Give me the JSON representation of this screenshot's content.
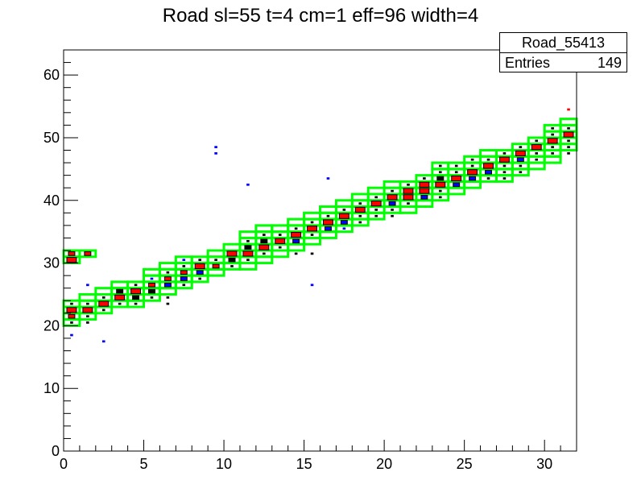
{
  "title": "Road sl=55 t=4 cm=1 eff=96 width=4",
  "stats": {
    "name": "Road_55413",
    "entries_label": "Entries",
    "entries_value": "149"
  },
  "colors": {
    "road": "#00ff00",
    "hit_red": "#ff0000",
    "hit_blue": "#0000ff",
    "hit_black": "#000000"
  },
  "chart_data": {
    "type": "heatmap",
    "xlim": [
      0,
      32
    ],
    "ylim": [
      0,
      64
    ],
    "x_ticks": [
      "0",
      "5",
      "10",
      "15",
      "20",
      "25",
      "30"
    ],
    "y_ticks": [
      "0",
      "10",
      "20",
      "30",
      "40",
      "50",
      "60"
    ],
    "road_boxes": [
      [
        0,
        20
      ],
      [
        0,
        21
      ],
      [
        0,
        22
      ],
      [
        0,
        23
      ],
      [
        0,
        30
      ],
      [
        0,
        31
      ],
      [
        1,
        21
      ],
      [
        1,
        22
      ],
      [
        1,
        23
      ],
      [
        1,
        24
      ],
      [
        1,
        31
      ],
      [
        2,
        22
      ],
      [
        2,
        23
      ],
      [
        2,
        24
      ],
      [
        2,
        25
      ],
      [
        3,
        23
      ],
      [
        3,
        24
      ],
      [
        3,
        25
      ],
      [
        3,
        26
      ],
      [
        4,
        23
      ],
      [
        4,
        24
      ],
      [
        4,
        25
      ],
      [
        4,
        26
      ],
      [
        5,
        24
      ],
      [
        5,
        25
      ],
      [
        5,
        26
      ],
      [
        5,
        27
      ],
      [
        5,
        28
      ],
      [
        6,
        25
      ],
      [
        6,
        26
      ],
      [
        6,
        27
      ],
      [
        6,
        28
      ],
      [
        6,
        29
      ],
      [
        7,
        26
      ],
      [
        7,
        27
      ],
      [
        7,
        28
      ],
      [
        7,
        29
      ],
      [
        7,
        30
      ],
      [
        8,
        27
      ],
      [
        8,
        28
      ],
      [
        8,
        29
      ],
      [
        8,
        30
      ],
      [
        9,
        28
      ],
      [
        9,
        29
      ],
      [
        9,
        30
      ],
      [
        9,
        31
      ],
      [
        10,
        29
      ],
      [
        10,
        30
      ],
      [
        10,
        31
      ],
      [
        10,
        32
      ],
      [
        11,
        29
      ],
      [
        11,
        30
      ],
      [
        11,
        31
      ],
      [
        11,
        32
      ],
      [
        11,
        33
      ],
      [
        11,
        34
      ],
      [
        12,
        30
      ],
      [
        12,
        31
      ],
      [
        12,
        32
      ],
      [
        12,
        33
      ],
      [
        12,
        34
      ],
      [
        12,
        35
      ],
      [
        13,
        31
      ],
      [
        13,
        32
      ],
      [
        13,
        33
      ],
      [
        13,
        34
      ],
      [
        13,
        35
      ],
      [
        14,
        32
      ],
      [
        14,
        33
      ],
      [
        14,
        34
      ],
      [
        14,
        35
      ],
      [
        14,
        36
      ],
      [
        15,
        33
      ],
      [
        15,
        34
      ],
      [
        15,
        35
      ],
      [
        15,
        36
      ],
      [
        15,
        37
      ],
      [
        16,
        34
      ],
      [
        16,
        35
      ],
      [
        16,
        36
      ],
      [
        16,
        37
      ],
      [
        16,
        38
      ],
      [
        17,
        35
      ],
      [
        17,
        36
      ],
      [
        17,
        37
      ],
      [
        17,
        38
      ],
      [
        17,
        39
      ],
      [
        18,
        36
      ],
      [
        18,
        37
      ],
      [
        18,
        38
      ],
      [
        18,
        39
      ],
      [
        18,
        40
      ],
      [
        19,
        37
      ],
      [
        19,
        38
      ],
      [
        19,
        39
      ],
      [
        19,
        40
      ],
      [
        19,
        41
      ],
      [
        20,
        38
      ],
      [
        20,
        39
      ],
      [
        20,
        40
      ],
      [
        20,
        41
      ],
      [
        20,
        42
      ],
      [
        21,
        38
      ],
      [
        21,
        39
      ],
      [
        21,
        40
      ],
      [
        21,
        41
      ],
      [
        21,
        42
      ],
      [
        22,
        39
      ],
      [
        22,
        40
      ],
      [
        22,
        41
      ],
      [
        22,
        42
      ],
      [
        22,
        43
      ],
      [
        23,
        40
      ],
      [
        23,
        41
      ],
      [
        23,
        42
      ],
      [
        23,
        43
      ],
      [
        23,
        44
      ],
      [
        23,
        45
      ],
      [
        24,
        41
      ],
      [
        24,
        42
      ],
      [
        24,
        43
      ],
      [
        24,
        44
      ],
      [
        24,
        45
      ],
      [
        25,
        42
      ],
      [
        25,
        43
      ],
      [
        25,
        44
      ],
      [
        25,
        45
      ],
      [
        25,
        46
      ],
      [
        26,
        43
      ],
      [
        26,
        44
      ],
      [
        26,
        45
      ],
      [
        26,
        46
      ],
      [
        26,
        47
      ],
      [
        27,
        43
      ],
      [
        27,
        44
      ],
      [
        27,
        45
      ],
      [
        27,
        46
      ],
      [
        27,
        47
      ],
      [
        28,
        44
      ],
      [
        28,
        45
      ],
      [
        28,
        46
      ],
      [
        28,
        47
      ],
      [
        28,
        48
      ],
      [
        29,
        45
      ],
      [
        29,
        46
      ],
      [
        29,
        47
      ],
      [
        29,
        48
      ],
      [
        29,
        49
      ],
      [
        30,
        46
      ],
      [
        30,
        47
      ],
      [
        30,
        48
      ],
      [
        30,
        49
      ],
      [
        30,
        50
      ],
      [
        30,
        51
      ],
      [
        31,
        48
      ],
      [
        31,
        49
      ],
      [
        31,
        50
      ],
      [
        31,
        51
      ],
      [
        31,
        52
      ]
    ],
    "hits": [
      [
        0,
        22,
        3,
        "red"
      ],
      [
        0,
        21,
        2,
        "red"
      ],
      [
        0,
        20,
        1,
        "black"
      ],
      [
        0,
        23,
        1,
        "black"
      ],
      [
        0,
        30,
        3,
        "red"
      ],
      [
        0,
        31,
        2,
        "red"
      ],
      [
        0,
        18,
        1,
        "blue"
      ],
      [
        1,
        22,
        3,
        "red"
      ],
      [
        1,
        23,
        1,
        "black"
      ],
      [
        1,
        21,
        1,
        "black"
      ],
      [
        1,
        31,
        2,
        "red"
      ],
      [
        1,
        26,
        1,
        "blue"
      ],
      [
        1,
        20,
        1,
        "black"
      ],
      [
        2,
        23,
        3,
        "red"
      ],
      [
        2,
        24,
        1,
        "black"
      ],
      [
        2,
        22,
        1,
        "black"
      ],
      [
        2,
        17,
        1,
        "blue"
      ],
      [
        3,
        24,
        3,
        "red"
      ],
      [
        3,
        25,
        2,
        "black"
      ],
      [
        3,
        23,
        1,
        "black"
      ],
      [
        4,
        25,
        3,
        "red"
      ],
      [
        4,
        24,
        2,
        "black"
      ],
      [
        4,
        26,
        1,
        "black"
      ],
      [
        4,
        23,
        1,
        "black"
      ],
      [
        5,
        26,
        2,
        "red"
      ],
      [
        5,
        25,
        2,
        "black"
      ],
      [
        5,
        27,
        1,
        "blue"
      ],
      [
        5,
        24,
        1,
        "black"
      ],
      [
        6,
        27,
        2,
        "red"
      ],
      [
        6,
        26,
        2,
        "blue"
      ],
      [
        6,
        28,
        1,
        "black"
      ],
      [
        6,
        24,
        1,
        "black"
      ],
      [
        6,
        23,
        1,
        "black"
      ],
      [
        7,
        28,
        2,
        "red"
      ],
      [
        7,
        27,
        2,
        "blue"
      ],
      [
        7,
        29,
        1,
        "black"
      ],
      [
        7,
        30,
        1,
        "blue"
      ],
      [
        7,
        26,
        1,
        "black"
      ],
      [
        8,
        29,
        3,
        "red"
      ],
      [
        8,
        28,
        2,
        "blue"
      ],
      [
        8,
        30,
        1,
        "black"
      ],
      [
        8,
        27,
        1,
        "black"
      ],
      [
        9,
        29,
        2,
        "red"
      ],
      [
        9,
        30,
        1,
        "black"
      ],
      [
        9,
        48,
        1,
        "blue"
      ],
      [
        9,
        47,
        1,
        "blue"
      ],
      [
        10,
        31,
        3,
        "red"
      ],
      [
        10,
        30,
        2,
        "black"
      ],
      [
        10,
        29,
        1,
        "black"
      ],
      [
        11,
        31,
        3,
        "red"
      ],
      [
        11,
        32,
        2,
        "black"
      ],
      [
        11,
        30,
        1,
        "black"
      ],
      [
        11,
        42,
        1,
        "blue"
      ],
      [
        11,
        33,
        1,
        "black"
      ],
      [
        12,
        32,
        3,
        "red"
      ],
      [
        12,
        33,
        2,
        "black"
      ],
      [
        12,
        31,
        1,
        "black"
      ],
      [
        12,
        34,
        1,
        "black"
      ],
      [
        13,
        33,
        3,
        "red"
      ],
      [
        13,
        34,
        1,
        "black"
      ],
      [
        13,
        32,
        1,
        "black"
      ],
      [
        14,
        34,
        3,
        "red"
      ],
      [
        14,
        33,
        2,
        "blue"
      ],
      [
        14,
        35,
        1,
        "black"
      ],
      [
        14,
        31,
        1,
        "black"
      ],
      [
        15,
        35,
        3,
        "red"
      ],
      [
        15,
        36,
        1,
        "black"
      ],
      [
        15,
        34,
        1,
        "black"
      ],
      [
        15,
        26,
        1,
        "blue"
      ],
      [
        15,
        31,
        1,
        "black"
      ],
      [
        16,
        36,
        3,
        "red"
      ],
      [
        16,
        37,
        1,
        "black"
      ],
      [
        16,
        35,
        2,
        "blue"
      ],
      [
        16,
        43,
        1,
        "blue"
      ],
      [
        17,
        37,
        3,
        "red"
      ],
      [
        17,
        38,
        1,
        "black"
      ],
      [
        17,
        36,
        2,
        "blue"
      ],
      [
        17,
        35,
        1,
        "blue"
      ],
      [
        18,
        38,
        3,
        "red"
      ],
      [
        18,
        39,
        1,
        "black"
      ],
      [
        18,
        37,
        1,
        "black"
      ],
      [
        18,
        36,
        1,
        "black"
      ],
      [
        19,
        39,
        3,
        "red"
      ],
      [
        19,
        40,
        1,
        "black"
      ],
      [
        19,
        38,
        1,
        "black"
      ],
      [
        19,
        37,
        1,
        "black"
      ],
      [
        20,
        40,
        3,
        "red"
      ],
      [
        20,
        41,
        1,
        "black"
      ],
      [
        20,
        39,
        2,
        "blue"
      ],
      [
        20,
        38,
        1,
        "black"
      ],
      [
        20,
        37,
        1,
        "black"
      ],
      [
        21,
        41,
        3,
        "red"
      ],
      [
        21,
        40,
        3,
        "red"
      ],
      [
        21,
        42,
        1,
        "black"
      ],
      [
        21,
        39,
        1,
        "black"
      ],
      [
        22,
        42,
        3,
        "red"
      ],
      [
        22,
        41,
        3,
        "red"
      ],
      [
        22,
        40,
        2,
        "blue"
      ],
      [
        22,
        43,
        1,
        "black"
      ],
      [
        23,
        42,
        3,
        "red"
      ],
      [
        23,
        43,
        2,
        "black"
      ],
      [
        23,
        41,
        1,
        "black"
      ],
      [
        23,
        44,
        1,
        "black"
      ],
      [
        23,
        45,
        1,
        "black"
      ],
      [
        23,
        40,
        1,
        "black"
      ],
      [
        24,
        43,
        3,
        "red"
      ],
      [
        24,
        42,
        2,
        "blue"
      ],
      [
        24,
        44,
        1,
        "black"
      ],
      [
        24,
        45,
        1,
        "black"
      ],
      [
        25,
        44,
        3,
        "red"
      ],
      [
        25,
        45,
        1,
        "black"
      ],
      [
        25,
        43,
        2,
        "blue"
      ],
      [
        25,
        46,
        1,
        "black"
      ],
      [
        26,
        45,
        3,
        "red"
      ],
      [
        26,
        44,
        2,
        "blue"
      ],
      [
        26,
        46,
        1,
        "black"
      ],
      [
        26,
        43,
        1,
        "black"
      ],
      [
        27,
        46,
        3,
        "red"
      ],
      [
        27,
        47,
        1,
        "black"
      ],
      [
        27,
        45,
        1,
        "black"
      ],
      [
        27,
        44,
        1,
        "black"
      ],
      [
        27,
        43,
        1,
        "black"
      ],
      [
        28,
        47,
        3,
        "red"
      ],
      [
        28,
        48,
        1,
        "black"
      ],
      [
        28,
        46,
        2,
        "blue"
      ],
      [
        28,
        45,
        1,
        "black"
      ],
      [
        28,
        44,
        1,
        "black"
      ],
      [
        29,
        48,
        3,
        "red"
      ],
      [
        29,
        49,
        1,
        "black"
      ],
      [
        29,
        47,
        1,
        "black"
      ],
      [
        29,
        46,
        1,
        "black"
      ],
      [
        30,
        49,
        3,
        "red"
      ],
      [
        30,
        50,
        1,
        "black"
      ],
      [
        30,
        48,
        1,
        "black"
      ],
      [
        30,
        47,
        1,
        "black"
      ],
      [
        30,
        51,
        1,
        "black"
      ],
      [
        31,
        50,
        3,
        "red"
      ],
      [
        31,
        51,
        1,
        "black"
      ],
      [
        31,
        49,
        1,
        "black"
      ],
      [
        31,
        48,
        1,
        "black"
      ],
      [
        31,
        47,
        1,
        "black"
      ],
      [
        31,
        54,
        1,
        "red"
      ]
    ]
  }
}
